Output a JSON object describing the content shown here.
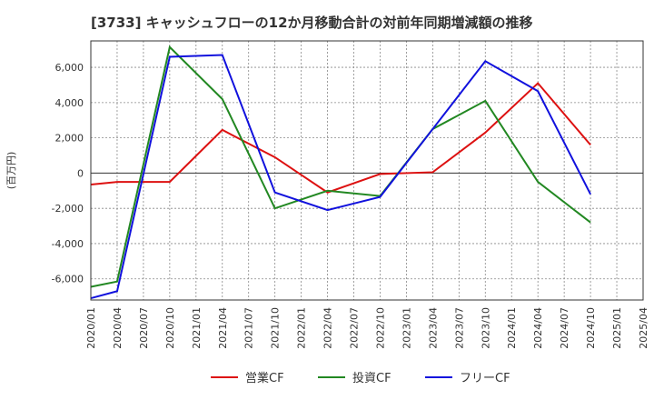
{
  "chart_data": {
    "type": "line",
    "title": "[3733]  キャッシュフローの12か月移動合計の対前年同期増減額の推移",
    "ylabel": "(百万円)",
    "xlabel": "",
    "x": [
      "2020/01",
      "2020/04",
      "2020/07",
      "2020/10",
      "2021/01",
      "2021/04",
      "2021/07",
      "2021/10",
      "2022/01",
      "2022/04",
      "2022/07",
      "2022/10",
      "2023/01",
      "2023/04",
      "2023/07",
      "2023/10",
      "2024/01",
      "2024/04",
      "2024/07",
      "2024/10",
      "2025/01",
      "2025/04"
    ],
    "yticks": [
      6000,
      4000,
      2000,
      0,
      -2000,
      -4000,
      -6000
    ],
    "ytick_labels": [
      "6,000",
      "4,000",
      "2,000",
      "0",
      "-2,000",
      "-4,000",
      "-6,000"
    ],
    "ylim": [
      -7200,
      7500
    ],
    "grid": true,
    "legend_position": "bottom",
    "series": [
      {
        "name": "営業CF",
        "color": "#dd1111",
        "points": [
          {
            "x": "2020/01",
            "y": -650
          },
          {
            "x": "2020/04",
            "y": -500
          },
          {
            "x": "2020/10",
            "y": -500
          },
          {
            "x": "2021/04",
            "y": 2450
          },
          {
            "x": "2021/10",
            "y": 900
          },
          {
            "x": "2022/04",
            "y": -1100
          },
          {
            "x": "2022/10",
            "y": -50
          },
          {
            "x": "2023/04",
            "y": 50
          },
          {
            "x": "2023/10",
            "y": 2300
          },
          {
            "x": "2024/04",
            "y": 5100
          },
          {
            "x": "2024/10",
            "y": 1600
          }
        ]
      },
      {
        "name": "投資CF",
        "color": "#228822",
        "points": [
          {
            "x": "2020/01",
            "y": -6450
          },
          {
            "x": "2020/04",
            "y": -6150
          },
          {
            "x": "2020/10",
            "y": 7150
          },
          {
            "x": "2021/04",
            "y": 4200
          },
          {
            "x": "2021/10",
            "y": -2000
          },
          {
            "x": "2022/04",
            "y": -1000
          },
          {
            "x": "2022/10",
            "y": -1300
          },
          {
            "x": "2023/04",
            "y": 2500
          },
          {
            "x": "2023/10",
            "y": 4100
          },
          {
            "x": "2024/04",
            "y": -500
          },
          {
            "x": "2024/10",
            "y": -2800
          }
        ]
      },
      {
        "name": "フリーCF",
        "color": "#1111dd",
        "points": [
          {
            "x": "2020/01",
            "y": -7100
          },
          {
            "x": "2020/04",
            "y": -6700
          },
          {
            "x": "2020/10",
            "y": 6600
          },
          {
            "x": "2021/04",
            "y": 6700
          },
          {
            "x": "2021/10",
            "y": -1100
          },
          {
            "x": "2022/04",
            "y": -2100
          },
          {
            "x": "2022/10",
            "y": -1350
          },
          {
            "x": "2023/04",
            "y": 2500
          },
          {
            "x": "2023/10",
            "y": 6350
          },
          {
            "x": "2024/04",
            "y": 4650
          },
          {
            "x": "2024/10",
            "y": -1200
          }
        ]
      }
    ]
  }
}
